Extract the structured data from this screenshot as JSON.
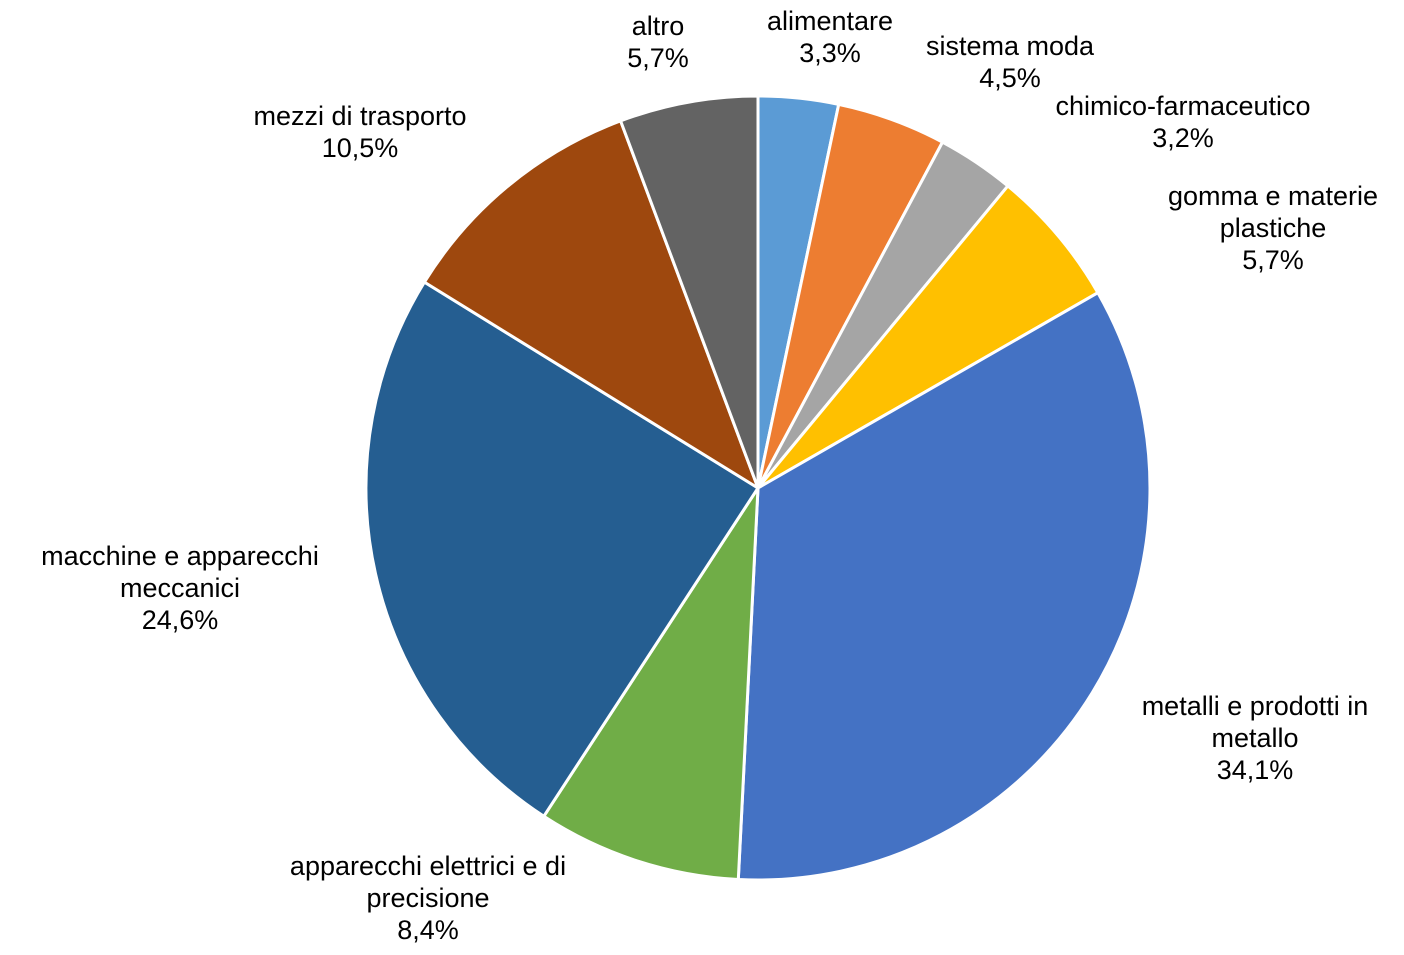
{
  "chart_data": {
    "type": "pie",
    "title": "",
    "slices": [
      {
        "label": [
          "alimentare"
        ],
        "value_text": "3,3%",
        "value": 3.3,
        "color": "#5B9BD5"
      },
      {
        "label": [
          "sistema moda"
        ],
        "value_text": "4,5%",
        "value": 4.5,
        "color": "#ED7D31"
      },
      {
        "label": [
          "chimico-farmaceutico"
        ],
        "value_text": "3,2%",
        "value": 3.2,
        "color": "#A5A5A5"
      },
      {
        "label": [
          "gomma e materie",
          "plastiche"
        ],
        "value_text": "5,7%",
        "value": 5.7,
        "color": "#FFC000"
      },
      {
        "label": [
          "metalli e prodotti in",
          "metallo"
        ],
        "value_text": "34,1%",
        "value": 34.1,
        "color": "#4472C4"
      },
      {
        "label": [
          "apparecchi elettrici e di",
          "precisione"
        ],
        "value_text": "8,4%",
        "value": 8.4,
        "color": "#70AD47"
      },
      {
        "label": [
          "macchine e apparecchi",
          "meccanici"
        ],
        "value_text": "24,6%",
        "value": 24.6,
        "color": "#255E91"
      },
      {
        "label": [
          "mezzi di trasporto"
        ],
        "value_text": "10,5%",
        "value": 10.5,
        "color": "#9E480E"
      },
      {
        "label": [
          "altro"
        ],
        "value_text": "5,7%",
        "value": 5.7,
        "color": "#636363"
      }
    ]
  }
}
